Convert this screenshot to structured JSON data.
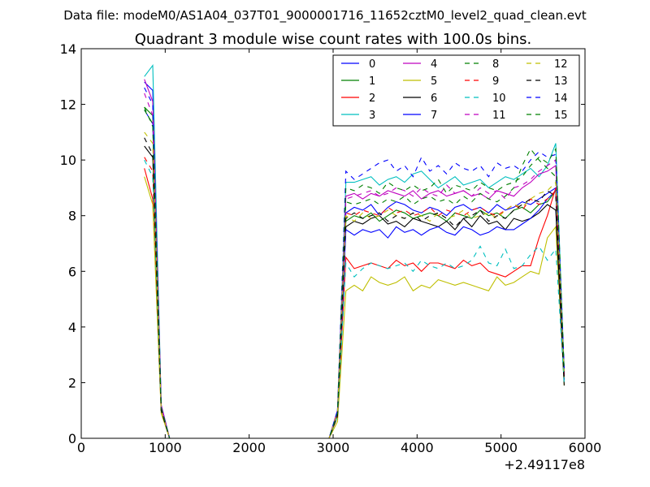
{
  "suptitle": "Data file: modeM0/AS1A04_037T01_9000001716_11652cztM0_level2_quad_clean.evt",
  "chart_data": {
    "type": "line",
    "title": "Quadrant 3 module wise count rates with 100.0s bins.",
    "xlabel": "",
    "ylabel": "",
    "x_offset_label": "+2.49117e8",
    "xlim": [
      0,
      6000
    ],
    "ylim": [
      0,
      14
    ],
    "x_ticks": [
      0,
      1000,
      2000,
      3000,
      4000,
      5000,
      6000
    ],
    "x_tick_labels": [
      "0",
      "1000",
      "2000",
      "3000",
      "4000",
      "5000",
      "6000"
    ],
    "y_ticks": [
      0,
      2,
      4,
      6,
      8,
      10,
      12,
      14
    ],
    "y_tick_labels": [
      "0",
      "2",
      "4",
      "6",
      "8",
      "10",
      "12",
      "14"
    ],
    "grid": false,
    "legend_position": "top-right",
    "legend_columns": 4,
    "x": [
      752,
      852,
      952,
      1052,
      1152,
      2852,
      2952,
      3052,
      3152,
      3252,
      3352,
      3452,
      3552,
      3652,
      3752,
      3852,
      3952,
      4052,
      4152,
      4252,
      4352,
      4452,
      4552,
      4652,
      4752,
      4852,
      4952,
      5052,
      5152,
      5252,
      5352,
      5452,
      5552,
      5652,
      5752
    ],
    "series": [
      {
        "name": "0",
        "color": "#0000ff",
        "dash": "solid",
        "values": [
          12.8,
          12.5,
          1.2,
          0.0,
          0.0,
          0.0,
          0.0,
          1.0,
          8.1,
          8.3,
          8.2,
          8.4,
          8.0,
          8.3,
          8.5,
          8.4,
          8.2,
          8.1,
          8.3,
          8.2,
          8.0,
          8.3,
          8.4,
          8.2,
          8.3,
          8.1,
          8.4,
          8.2,
          8.3,
          8.5,
          8.4,
          8.6,
          8.8,
          9.0,
          2.2
        ]
      },
      {
        "name": "1",
        "color": "#008000",
        "dash": "solid",
        "values": [
          11.9,
          11.6,
          1.1,
          0.0,
          0.0,
          0.0,
          0.0,
          0.9,
          7.8,
          8.0,
          7.9,
          8.1,
          7.8,
          8.0,
          8.2,
          8.1,
          7.9,
          8.0,
          8.1,
          8.0,
          7.8,
          8.1,
          8.0,
          7.9,
          8.2,
          8.0,
          8.1,
          7.9,
          8.2,
          8.3,
          8.1,
          8.4,
          8.5,
          8.9,
          2.1
        ]
      },
      {
        "name": "2",
        "color": "#ff0000",
        "dash": "solid",
        "values": [
          9.7,
          8.6,
          1.0,
          0.0,
          0.0,
          0.0,
          0.0,
          0.8,
          6.5,
          6.1,
          6.2,
          6.3,
          6.2,
          6.1,
          6.4,
          6.2,
          6.3,
          6.0,
          6.3,
          6.3,
          6.2,
          6.1,
          6.4,
          6.2,
          6.3,
          6.0,
          5.9,
          5.8,
          6.0,
          6.2,
          6.2,
          7.2,
          8.0,
          9.0,
          2.1
        ]
      },
      {
        "name": "3",
        "color": "#00bfbf",
        "dash": "solid",
        "values": [
          13.0,
          13.4,
          1.2,
          0.0,
          0.0,
          0.0,
          0.0,
          1.0,
          9.2,
          9.2,
          9.3,
          9.4,
          9.1,
          9.3,
          9.4,
          9.2,
          9.5,
          9.6,
          9.3,
          9.0,
          9.2,
          9.4,
          9.1,
          9.2,
          9.3,
          9.0,
          9.2,
          9.4,
          9.3,
          9.5,
          9.7,
          9.4,
          9.8,
          10.6,
          2.4
        ]
      },
      {
        "name": "4",
        "color": "#bf00bf",
        "dash": "solid",
        "values": [
          12.9,
          12.1,
          1.2,
          0.0,
          0.0,
          0.0,
          0.0,
          1.0,
          8.7,
          8.8,
          8.6,
          8.8,
          8.7,
          8.9,
          8.8,
          8.7,
          8.9,
          8.6,
          8.8,
          8.9,
          8.7,
          8.8,
          8.9,
          8.7,
          8.8,
          8.6,
          8.9,
          8.8,
          8.7,
          9.0,
          9.2,
          9.5,
          9.6,
          9.8,
          2.3
        ]
      },
      {
        "name": "5",
        "color": "#bfbf00",
        "dash": "solid",
        "values": [
          9.4,
          8.4,
          0.9,
          0.0,
          0.0,
          0.0,
          0.0,
          0.6,
          5.3,
          5.5,
          5.3,
          5.8,
          5.6,
          5.5,
          5.6,
          5.8,
          5.3,
          5.5,
          5.4,
          5.7,
          5.6,
          5.5,
          5.6,
          5.5,
          5.4,
          5.3,
          5.8,
          5.5,
          5.6,
          5.8,
          6.0,
          5.9,
          7.2,
          7.6,
          1.9
        ]
      },
      {
        "name": "6",
        "color": "#000000",
        "dash": "solid",
        "values": [
          10.5,
          10.1,
          1.0,
          0.0,
          0.0,
          0.0,
          0.0,
          0.8,
          7.6,
          7.8,
          7.7,
          7.9,
          8.0,
          7.7,
          7.8,
          7.6,
          7.9,
          7.8,
          7.7,
          7.6,
          7.8,
          7.5,
          7.9,
          7.6,
          8.0,
          7.7,
          7.8,
          7.5,
          7.9,
          7.8,
          7.9,
          8.1,
          8.4,
          8.2,
          1.9
        ]
      },
      {
        "name": "7",
        "color": "#0000ff",
        "dash": "solid",
        "values": [
          11.8,
          11.3,
          1.1,
          0.0,
          0.0,
          0.0,
          0.0,
          0.9,
          7.5,
          7.3,
          7.5,
          7.4,
          7.5,
          7.2,
          7.6,
          7.4,
          7.5,
          7.3,
          7.5,
          7.6,
          7.4,
          7.3,
          7.6,
          7.5,
          7.3,
          7.4,
          7.6,
          7.5,
          7.5,
          7.7,
          7.9,
          8.2,
          8.6,
          8.9,
          2.1
        ]
      },
      {
        "name": "8",
        "color": "#008000",
        "dash": "dashed",
        "values": [
          11.8,
          11.3,
          1.1,
          0.0,
          0.0,
          0.0,
          0.0,
          0.9,
          8.5,
          8.4,
          8.5,
          8.6,
          8.4,
          8.6,
          8.5,
          8.7,
          8.4,
          8.6,
          8.7,
          8.5,
          8.6,
          8.4,
          8.7,
          8.5,
          8.8,
          8.6,
          8.5,
          8.7,
          9.0,
          9.8,
          10.4,
          10.0,
          9.7,
          9.4,
          2.3
        ]
      },
      {
        "name": "9",
        "color": "#ff0000",
        "dash": "dashed",
        "values": [
          10.1,
          9.6,
          1.0,
          0.0,
          0.0,
          0.0,
          0.0,
          0.8,
          8.1,
          8.0,
          8.2,
          8.1,
          8.0,
          8.3,
          8.1,
          8.2,
          8.0,
          8.1,
          8.3,
          8.0,
          8.2,
          8.1,
          8.0,
          8.2,
          8.3,
          8.1,
          8.0,
          8.2,
          8.4,
          8.2,
          8.6,
          8.4,
          8.6,
          8.9,
          2.2
        ]
      },
      {
        "name": "10",
        "color": "#00bfbf",
        "dash": "dashed",
        "values": [
          10.0,
          9.4,
          1.0,
          0.0,
          0.0,
          0.0,
          0.0,
          0.8,
          6.3,
          5.8,
          6.1,
          6.3,
          6.2,
          6.1,
          6.2,
          6.3,
          6.0,
          6.4,
          6.2,
          6.1,
          6.3,
          6.1,
          6.2,
          6.4,
          6.9,
          6.3,
          6.2,
          6.8,
          6.1,
          6.2,
          6.6,
          6.9,
          6.4,
          6.8,
          2.0
        ]
      },
      {
        "name": "11",
        "color": "#bf00bf",
        "dash": "dashed",
        "values": [
          12.4,
          11.6,
          1.1,
          0.0,
          0.0,
          0.0,
          0.0,
          0.9,
          8.6,
          8.7,
          8.8,
          8.9,
          8.7,
          8.8,
          9.0,
          8.9,
          8.7,
          9.0,
          8.8,
          8.7,
          9.1,
          8.8,
          8.9,
          8.7,
          9.0,
          8.8,
          8.9,
          8.6,
          9.0,
          9.1,
          9.3,
          9.6,
          9.8,
          10.0,
          2.4
        ]
      },
      {
        "name": "12",
        "color": "#bfbf00",
        "dash": "dashed",
        "values": [
          11.0,
          10.6,
          1.0,
          0.0,
          0.0,
          0.0,
          0.0,
          0.9,
          8.0,
          7.8,
          8.1,
          7.9,
          8.0,
          8.2,
          8.0,
          7.9,
          8.1,
          8.0,
          7.8,
          8.1,
          7.9,
          8.0,
          8.2,
          7.9,
          8.0,
          8.1,
          7.9,
          8.2,
          8.4,
          8.3,
          8.6,
          8.8,
          8.9,
          9.2,
          2.2
        ]
      },
      {
        "name": "13",
        "color": "#000000",
        "dash": "dashed",
        "values": [
          10.8,
          10.2,
          1.0,
          0.0,
          0.0,
          0.0,
          0.0,
          0.8,
          7.9,
          8.1,
          7.9,
          8.0,
          8.1,
          7.8,
          8.0,
          7.9,
          8.1,
          7.8,
          8.0,
          8.1,
          7.9,
          7.6,
          7.9,
          8.0,
          8.2,
          7.8,
          8.0,
          7.9,
          8.2,
          8.4,
          8.6,
          8.5,
          8.9,
          8.7,
          2.1
        ]
      },
      {
        "name": "14",
        "color": "#0000ff",
        "dash": "dashed",
        "values": [
          12.6,
          12.0,
          1.1,
          0.0,
          0.0,
          0.0,
          0.0,
          1.0,
          9.6,
          9.3,
          9.5,
          9.7,
          9.9,
          10.0,
          9.6,
          9.8,
          9.4,
          10.1,
          9.6,
          9.8,
          9.5,
          9.9,
          9.7,
          9.6,
          9.8,
          9.4,
          9.9,
          9.7,
          9.8,
          9.6,
          10.0,
          10.3,
          10.1,
          10.2,
          2.5
        ]
      },
      {
        "name": "15",
        "color": "#008000",
        "dash": "dashed",
        "values": [
          11.9,
          11.2,
          1.1,
          0.0,
          0.0,
          0.0,
          0.0,
          0.9,
          9.0,
          8.9,
          9.1,
          9.0,
          8.8,
          9.2,
          9.0,
          8.9,
          9.1,
          8.9,
          9.0,
          9.3,
          8.8,
          9.1,
          9.0,
          8.9,
          9.2,
          9.0,
          8.9,
          9.1,
          9.2,
          9.4,
          9.8,
          10.1,
          9.9,
          10.4,
          2.4
        ]
      }
    ]
  }
}
